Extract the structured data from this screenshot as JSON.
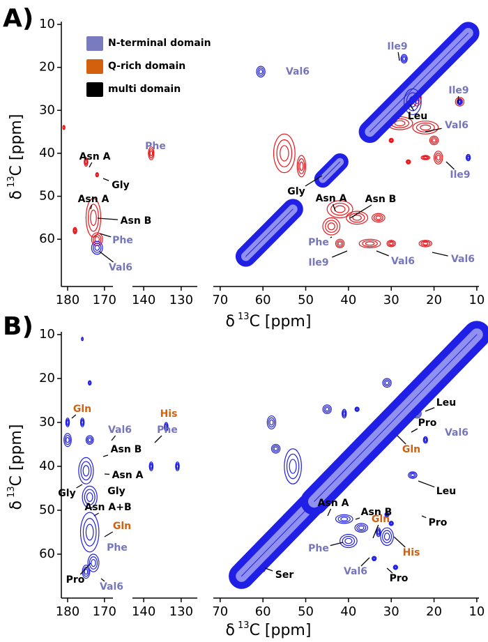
{
  "chart_data": [
    {
      "type": "contour",
      "panel_label": "A)",
      "xlabel": {
        "symbol": "δ",
        "sup": "13",
        "unit": "C [ppm]"
      },
      "ylabel": {
        "symbol": "δ",
        "sup": "13",
        "unit": "C [ppm]"
      },
      "xsegments": [
        {
          "xlim": [
            181.7,
            167.7
          ],
          "xticks": [
            180,
            170
          ]
        },
        {
          "xlim": [
            143,
            125.7
          ],
          "xticks": [
            140,
            130
          ]
        },
        {
          "xlim": [
            71.6,
            9.5
          ],
          "xticks": [
            70,
            60,
            50,
            40,
            30,
            20,
            10
          ]
        }
      ],
      "ylim": [
        10,
        71
      ],
      "yticks": [
        10,
        20,
        30,
        40,
        50,
        60
      ],
      "legend": [
        {
          "name": "N-terminal domain",
          "color": "#7a7abf"
        },
        {
          "name": "Q-rich domain",
          "color": "#d4600e"
        },
        {
          "name": "multi domain",
          "color": "#000000"
        }
      ],
      "contours": [
        {
          "color": "#e8161b",
          "ridges": [],
          "peaks": [
            [
              181,
              34,
              0.6,
              1
            ],
            [
              175,
              42,
              1,
              2
            ],
            [
              172,
              45,
              0.8,
              1
            ],
            [
              173,
              55,
              4,
              9
            ],
            [
              178,
              58,
              1,
              1.5
            ],
            [
              172,
              60,
              3,
              3
            ],
            [
              138,
              40,
              1.5,
              3
            ],
            [
              55,
              40,
              5,
              9
            ],
            [
              51,
              43,
              2,
              5
            ],
            [
              42,
              53,
              6,
              4
            ],
            [
              38,
              55,
              5,
              3
            ],
            [
              44,
              57,
              4,
              4
            ],
            [
              33,
              55,
              3,
              2
            ],
            [
              42,
              61,
              2,
              2
            ],
            [
              35,
              61,
              5,
              2
            ],
            [
              22,
              61,
              3,
              1.5
            ],
            [
              30,
              61,
              2,
              1.5
            ],
            [
              28,
              33,
              6,
              3
            ],
            [
              22,
              34,
              6,
              3
            ],
            [
              20,
              37,
              2,
              2
            ],
            [
              19,
              41,
              2,
              3
            ],
            [
              14,
              28,
              2,
              2
            ],
            [
              24,
              27,
              2,
              4
            ],
            [
              22,
              41,
              2,
              1
            ],
            [
              26,
              42,
              1,
              1
            ],
            [
              30,
              37,
              1,
              1
            ]
          ]
        },
        {
          "color": "#1f1fe6",
          "ridges": [
            [
              64,
              53,
              2.4
            ],
            [
              46,
              42,
              2
            ],
            [
              35,
              12,
              2.6
            ]
          ],
          "peaks": [
            [
              172,
              62,
              3,
              3
            ],
            [
              60.5,
              21,
              2,
              2.5
            ],
            [
              27,
              18,
              1.5,
              2
            ],
            [
              14,
              28,
              1,
              1.5
            ],
            [
              12,
              41,
              1,
              1.5
            ],
            [
              25,
              28,
              4,
              6
            ]
          ]
        }
      ],
      "annotations": [
        {
          "text": "Asn A",
          "color": "#000000"
        },
        {
          "text": "Gly",
          "color": "#000000"
        },
        {
          "text": "Asn A",
          "color": "#000000"
        },
        {
          "text": "Asn B",
          "color": "#000000"
        },
        {
          "text": "Phe",
          "color": "#7676bb"
        },
        {
          "text": "Val6",
          "color": "#7676bb"
        },
        {
          "text": "Phe",
          "color": "#7676bb"
        },
        {
          "text": "Val6",
          "color": "#7676bb"
        },
        {
          "text": "Ile9",
          "color": "#7676bb"
        },
        {
          "text": "Ile9",
          "color": "#7676bb"
        },
        {
          "text": "Leu",
          "color": "#000000"
        },
        {
          "text": "Val6",
          "color": "#7676bb"
        },
        {
          "text": "Ile9",
          "color": "#7676bb"
        },
        {
          "text": "Gly",
          "color": "#000000"
        },
        {
          "text": "Asn A",
          "color": "#000000"
        },
        {
          "text": "Asn B",
          "color": "#000000"
        },
        {
          "text": "Phe",
          "color": "#7676bb"
        },
        {
          "text": "Ile9",
          "color": "#7676bb"
        },
        {
          "text": "Val6",
          "color": "#7676bb"
        },
        {
          "text": "Val6",
          "color": "#7676bb"
        }
      ]
    },
    {
      "type": "contour",
      "panel_label": "B)",
      "xlabel": {
        "symbol": "δ",
        "sup": "13",
        "unit": "C [ppm]"
      },
      "ylabel": {
        "symbol": "δ",
        "sup": "13",
        "unit": "C [ppm]"
      },
      "xsegments": [
        {
          "xlim": [
            181.7,
            167.7
          ],
          "xticks": [
            180,
            170
          ]
        },
        {
          "xlim": [
            143,
            125.7
          ],
          "xticks": [
            140,
            130
          ]
        },
        {
          "xlim": [
            71.6,
            9.5
          ],
          "xticks": [
            70,
            60,
            50,
            40,
            30,
            20,
            10
          ]
        }
      ],
      "ylim": [
        10,
        70
      ],
      "yticks": [
        10,
        20,
        30,
        40,
        50,
        60
      ],
      "contours": [
        {
          "color": "#1f1fe6",
          "ridges": [
            [
              65,
              49,
              3
            ],
            [
              48,
              10,
              3.2
            ]
          ],
          "peaks": [
            [
              176,
              11,
              0.5,
              0.8
            ],
            [
              174,
              21,
              0.8,
              1
            ],
            [
              180,
              30,
              1,
              2
            ],
            [
              180,
              34,
              2,
              3
            ],
            [
              176,
              30,
              1,
              2
            ],
            [
              174,
              34,
              2,
              2
            ],
            [
              175,
              41,
              4,
              6
            ],
            [
              174,
              47,
              4,
              5
            ],
            [
              174,
              55,
              5,
              9
            ],
            [
              173,
              62,
              3,
              4
            ],
            [
              175,
              64,
              2,
              3
            ],
            [
              138,
              40,
              1,
              2
            ],
            [
              134,
              31,
              1,
              2
            ],
            [
              131,
              40,
              1,
              2
            ],
            [
              58,
              30,
              2,
              3
            ],
            [
              57,
              36,
              2,
              2
            ],
            [
              53,
              40,
              4,
              8
            ],
            [
              60,
              63.5,
              1,
              1
            ],
            [
              41,
              52,
              4,
              2
            ],
            [
              37,
              54,
              3,
              2
            ],
            [
              40,
              57,
              4,
              3
            ],
            [
              33,
              55,
              1,
              2
            ],
            [
              31,
              56,
              3,
              4
            ],
            [
              30,
              53,
              1,
              1
            ],
            [
              31,
              51,
              1,
              1
            ],
            [
              34,
              61,
              1,
              1
            ],
            [
              29,
              63,
              1,
              1
            ],
            [
              22,
              34,
              1,
              1.5
            ],
            [
              25,
              42,
              2,
              1.5
            ],
            [
              45,
              27,
              2,
              2
            ],
            [
              41,
              28,
              1,
              2
            ],
            [
              38,
              27,
              1,
              1
            ],
            [
              31,
              21,
              2,
              2
            ],
            [
              24,
              28,
              2,
              2
            ],
            [
              36,
              39,
              1,
              1
            ]
          ]
        }
      ],
      "annotations": [
        {
          "text": "Gln",
          "color": "#d4600e"
        },
        {
          "text": "Val6",
          "color": "#7676bb"
        },
        {
          "text": "Asn B",
          "color": "#000000"
        },
        {
          "text": "Asn A",
          "color": "#000000"
        },
        {
          "text": "Phe",
          "color": "#7676bb"
        },
        {
          "text": "His",
          "color": "#d4600e"
        },
        {
          "text": "Gly",
          "color": "#000000"
        },
        {
          "text": "Gly",
          "color": "#000000"
        },
        {
          "text": "Asn A+B",
          "color": "#000000"
        },
        {
          "text": "Gln",
          "color": "#d4600e"
        },
        {
          "text": "Phe",
          "color": "#7676bb"
        },
        {
          "text": "Pro",
          "color": "#000000"
        },
        {
          "text": "Val6",
          "color": "#7676bb"
        },
        {
          "text": "Leu",
          "color": "#000000"
        },
        {
          "text": "Pro",
          "color": "#000000"
        },
        {
          "text": "Val6",
          "color": "#7676bb"
        },
        {
          "text": "Gln",
          "color": "#d4600e"
        },
        {
          "text": "Leu",
          "color": "#000000"
        },
        {
          "text": "Pro",
          "color": "#000000"
        },
        {
          "text": "Asn A",
          "color": "#000000"
        },
        {
          "text": "Asn B",
          "color": "#000000"
        },
        {
          "text": "Gln",
          "color": "#d4600e"
        },
        {
          "text": "His",
          "color": "#d4600e"
        },
        {
          "text": "Phe",
          "color": "#7676bb"
        },
        {
          "text": "Val6",
          "color": "#7676bb"
        },
        {
          "text": "Pro",
          "color": "#000000"
        },
        {
          "text": "Ser",
          "color": "#000000"
        }
      ]
    }
  ]
}
